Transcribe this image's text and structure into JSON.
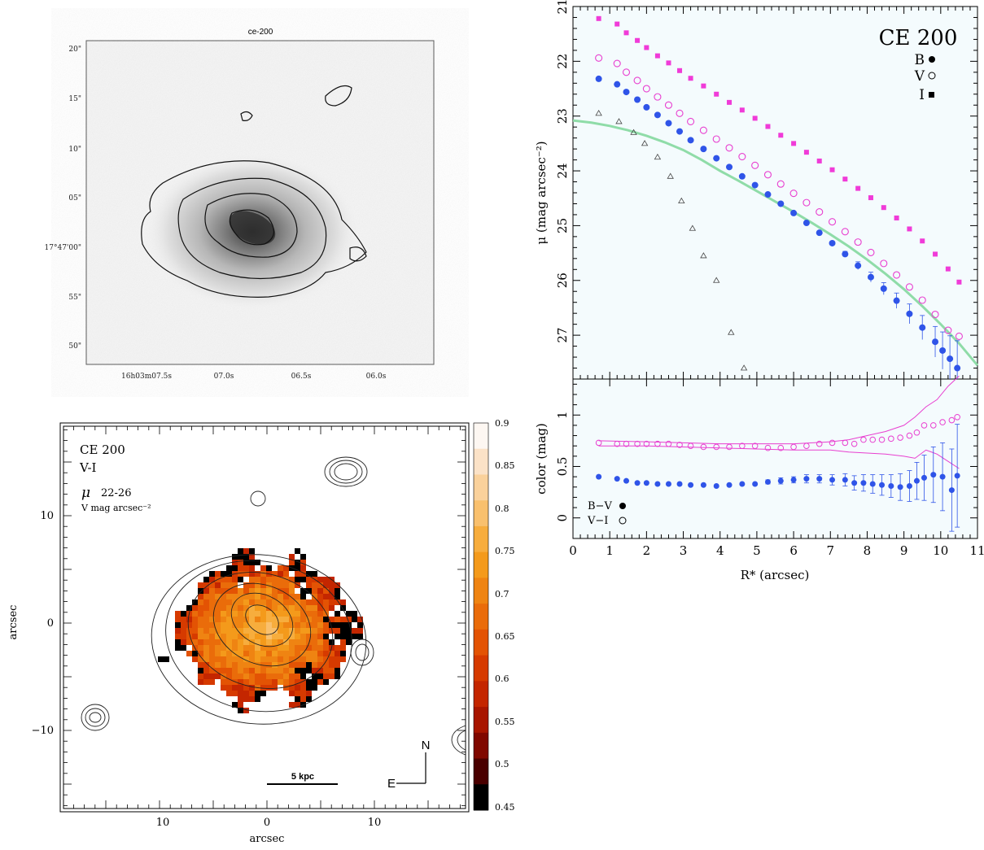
{
  "top_left": {
    "title": "ce-200",
    "y_ticks": [
      "20\"",
      "15\"",
      "10\"",
      "05\"",
      "17°47'00\"",
      "55\"",
      "50\""
    ],
    "x_ticks": [
      "16h03m07.5s",
      "07.0s",
      "06.5s",
      "06.0s"
    ]
  },
  "bottom_left": {
    "title": "CE 200",
    "band": "V-I",
    "mu_symbol": "μ",
    "mu_range": "22-26",
    "mu_unit": "V mag arcsec⁻²",
    "x_label": "arcsec",
    "y_label": "arcsec",
    "x_ticks": [
      "10",
      "0",
      "10"
    ],
    "y_ticks": [
      "10",
      "0",
      "−10"
    ],
    "scale_bar": "5 kpc",
    "compass_n": "N",
    "compass_e": "E",
    "colorbar_ticks": [
      "0.9",
      "0.85",
      "0.8",
      "0.75",
      "0.7",
      "0.65",
      "0.6",
      "0.55",
      "0.5",
      "0.45"
    ],
    "colorbar_colors": [
      "#fdf7f2",
      "#fbe2c7",
      "#fad19b",
      "#f9c06d",
      "#f7ad3d",
      "#f49a1b",
      "#ef8412",
      "#ea6c0a",
      "#e35304",
      "#d63a00",
      "#c42600",
      "#a81600",
      "#800800",
      "#4a0000",
      "#000000"
    ]
  },
  "chart_data": [
    {
      "type": "scatter",
      "title": "CE 200",
      "xlabel": "R* (arcsec)",
      "ylabel": "μ (mag arcsec⁻²)",
      "xlim": [
        0,
        11
      ],
      "ylim": [
        21,
        27.8
      ],
      "y_inverted": true,
      "y_ticks": [
        21,
        22,
        23,
        24,
        25,
        26,
        27
      ],
      "legend": [
        {
          "label": "B",
          "marker": "filled-circle"
        },
        {
          "label": "V",
          "marker": "open-circle"
        },
        {
          "label": "I",
          "marker": "filled-square"
        }
      ],
      "colors": {
        "B": "#2f54e8",
        "V": "#e83fd0",
        "I": "#f03bd8",
        "fit": "#8fdca8",
        "psf": "#444444"
      },
      "series": [
        {
          "name": "I",
          "x": [
            0.7,
            1.2,
            1.45,
            1.75,
            2.0,
            2.3,
            2.6,
            2.9,
            3.2,
            3.55,
            3.9,
            4.25,
            4.6,
            4.95,
            5.3,
            5.65,
            6.0,
            6.35,
            6.7,
            7.05,
            7.4,
            7.75,
            8.1,
            8.45,
            8.8,
            9.15,
            9.5,
            9.85,
            10.2,
            10.5
          ],
          "y": [
            21.22,
            21.32,
            21.48,
            21.62,
            21.75,
            21.9,
            22.03,
            22.17,
            22.31,
            22.45,
            22.6,
            22.75,
            22.89,
            23.04,
            23.19,
            23.35,
            23.5,
            23.66,
            23.82,
            23.98,
            24.15,
            24.32,
            24.49,
            24.67,
            24.86,
            25.06,
            25.28,
            25.52,
            25.79,
            26.03
          ]
        },
        {
          "name": "V",
          "x": [
            0.7,
            1.2,
            1.45,
            1.75,
            2.0,
            2.3,
            2.6,
            2.9,
            3.2,
            3.55,
            3.9,
            4.25,
            4.6,
            4.95,
            5.3,
            5.65,
            6.0,
            6.35,
            6.7,
            7.05,
            7.4,
            7.75,
            8.1,
            8.45,
            8.8,
            9.15,
            9.5,
            9.85,
            10.2,
            10.5
          ],
          "y": [
            21.94,
            22.04,
            22.2,
            22.35,
            22.5,
            22.65,
            22.8,
            22.95,
            23.1,
            23.26,
            23.42,
            23.58,
            23.74,
            23.9,
            24.07,
            24.24,
            24.41,
            24.58,
            24.75,
            24.93,
            25.11,
            25.3,
            25.49,
            25.69,
            25.9,
            26.12,
            26.36,
            26.62,
            26.91,
            27.02
          ]
        },
        {
          "name": "B",
          "x": [
            0.7,
            1.2,
            1.45,
            1.75,
            2.0,
            2.3,
            2.6,
            2.9,
            3.2,
            3.55,
            3.9,
            4.25,
            4.6,
            4.95,
            5.3,
            5.65,
            6.0,
            6.35,
            6.7,
            7.05,
            7.4,
            7.75,
            8.1,
            8.45,
            8.8,
            9.15,
            9.5,
            9.85,
            10.05,
            10.25,
            10.45
          ],
          "y": [
            22.32,
            22.42,
            22.56,
            22.7,
            22.84,
            22.98,
            23.13,
            23.28,
            23.44,
            23.6,
            23.77,
            23.93,
            24.1,
            24.26,
            24.43,
            24.6,
            24.77,
            24.95,
            25.13,
            25.32,
            25.52,
            25.73,
            25.94,
            26.15,
            26.37,
            26.61,
            26.86,
            27.12,
            27.28,
            27.43,
            27.6
          ],
          "yerr": [
            0,
            0,
            0,
            0,
            0,
            0,
            0,
            0,
            0,
            0,
            0,
            0,
            0,
            0,
            0,
            0,
            0,
            0,
            0,
            0.03,
            0.05,
            0.07,
            0.09,
            0.11,
            0.14,
            0.18,
            0.22,
            0.28,
            0.34,
            0.42,
            0.5
          ]
        },
        {
          "name": "PSF",
          "x": [
            0.7,
            1.25,
            1.65,
            1.95,
            2.3,
            2.65,
            2.95,
            3.25,
            3.55,
            3.9,
            4.3,
            4.65
          ],
          "y": [
            22.95,
            23.1,
            23.3,
            23.5,
            23.75,
            24.1,
            24.55,
            25.05,
            25.55,
            26.0,
            26.95,
            27.6
          ]
        },
        {
          "name": "fit",
          "x": [
            0,
            0.5,
            1,
            1.5,
            2,
            2.5,
            3,
            3.5,
            4,
            4.5,
            5,
            5.5,
            6,
            6.5,
            7,
            7.5,
            8,
            8.5,
            9,
            9.5,
            10,
            10.5,
            11
          ],
          "y": [
            23.08,
            23.12,
            23.18,
            23.26,
            23.36,
            23.48,
            23.62,
            23.8,
            24.0,
            24.18,
            24.37,
            24.56,
            24.75,
            24.95,
            25.16,
            25.38,
            25.62,
            25.88,
            26.16,
            26.47,
            26.8,
            27.15,
            27.55
          ]
        }
      ]
    },
    {
      "type": "scatter",
      "xlabel": "R* (arcsec)",
      "ylabel": "color (mag)",
      "xlim": [
        0,
        11
      ],
      "ylim": [
        -0.2,
        1.35
      ],
      "x_ticks": [
        0,
        1,
        2,
        3,
        4,
        5,
        6,
        7,
        8,
        9,
        10,
        11
      ],
      "y_ticks": [
        0,
        0.5,
        1
      ],
      "legend": [
        {
          "label": "B−V",
          "marker": "filled-circle"
        },
        {
          "label": "V−I",
          "marker": "open-circle"
        }
      ],
      "series": [
        {
          "name": "V−I",
          "x": [
            0.7,
            1.2,
            1.45,
            1.75,
            2.0,
            2.3,
            2.6,
            2.9,
            3.2,
            3.55,
            3.9,
            4.25,
            4.6,
            4.95,
            5.3,
            5.65,
            6.0,
            6.35,
            6.7,
            7.05,
            7.4,
            7.65,
            7.9,
            8.15,
            8.4,
            8.65,
            8.9,
            9.15,
            9.35,
            9.55,
            9.8,
            10.05,
            10.3,
            10.45
          ],
          "y": [
            0.73,
            0.72,
            0.72,
            0.72,
            0.72,
            0.72,
            0.72,
            0.71,
            0.7,
            0.69,
            0.69,
            0.69,
            0.7,
            0.7,
            0.68,
            0.68,
            0.69,
            0.7,
            0.72,
            0.73,
            0.73,
            0.72,
            0.76,
            0.76,
            0.76,
            0.77,
            0.78,
            0.8,
            0.83,
            0.9,
            0.9,
            0.93,
            0.95,
            0.98
          ]
        },
        {
          "name": "B−V",
          "x": [
            0.7,
            1.2,
            1.45,
            1.75,
            2.0,
            2.3,
            2.6,
            2.9,
            3.2,
            3.55,
            3.9,
            4.25,
            4.6,
            4.95,
            5.3,
            5.65,
            6.0,
            6.35,
            6.7,
            7.05,
            7.4,
            7.65,
            7.9,
            8.15,
            8.4,
            8.65,
            8.9,
            9.15,
            9.35,
            9.55,
            9.8,
            10.05,
            10.3,
            10.45
          ],
          "y": [
            0.4,
            0.38,
            0.36,
            0.34,
            0.34,
            0.33,
            0.33,
            0.33,
            0.32,
            0.32,
            0.31,
            0.32,
            0.33,
            0.33,
            0.35,
            0.36,
            0.37,
            0.38,
            0.38,
            0.37,
            0.37,
            0.34,
            0.34,
            0.33,
            0.32,
            0.31,
            0.3,
            0.31,
            0.36,
            0.39,
            0.42,
            0.4,
            0.27,
            0.41
          ],
          "yerr": [
            0,
            0,
            0,
            0,
            0,
            0,
            0,
            0,
            0,
            0,
            0,
            0,
            0,
            0,
            0.02,
            0.03,
            0.03,
            0.04,
            0.04,
            0.05,
            0.06,
            0.07,
            0.08,
            0.09,
            0.1,
            0.11,
            0.13,
            0.15,
            0.18,
            0.22,
            0.27,
            0.33,
            0.4,
            0.5
          ]
        },
        {
          "name": "upper-envelope",
          "x": [
            0.7,
            2,
            3,
            4,
            5,
            6,
            7,
            7.5,
            8,
            8.5,
            9,
            9.3,
            9.6,
            9.9,
            10.2,
            10.5
          ],
          "y": [
            0.75,
            0.74,
            0.73,
            0.72,
            0.72,
            0.72,
            0.74,
            0.76,
            0.8,
            0.84,
            0.9,
            0.98,
            1.08,
            1.15,
            1.28,
            1.38
          ]
        },
        {
          "name": "lower-envelope",
          "x": [
            0.7,
            2,
            3,
            4,
            5,
            6,
            7,
            7.5,
            8,
            8.5,
            9,
            9.3,
            9.6,
            9.9,
            10.2,
            10.5
          ],
          "y": [
            0.7,
            0.7,
            0.69,
            0.68,
            0.67,
            0.66,
            0.66,
            0.64,
            0.63,
            0.62,
            0.6,
            0.58,
            0.66,
            0.62,
            0.55,
            0.48
          ]
        }
      ]
    }
  ]
}
